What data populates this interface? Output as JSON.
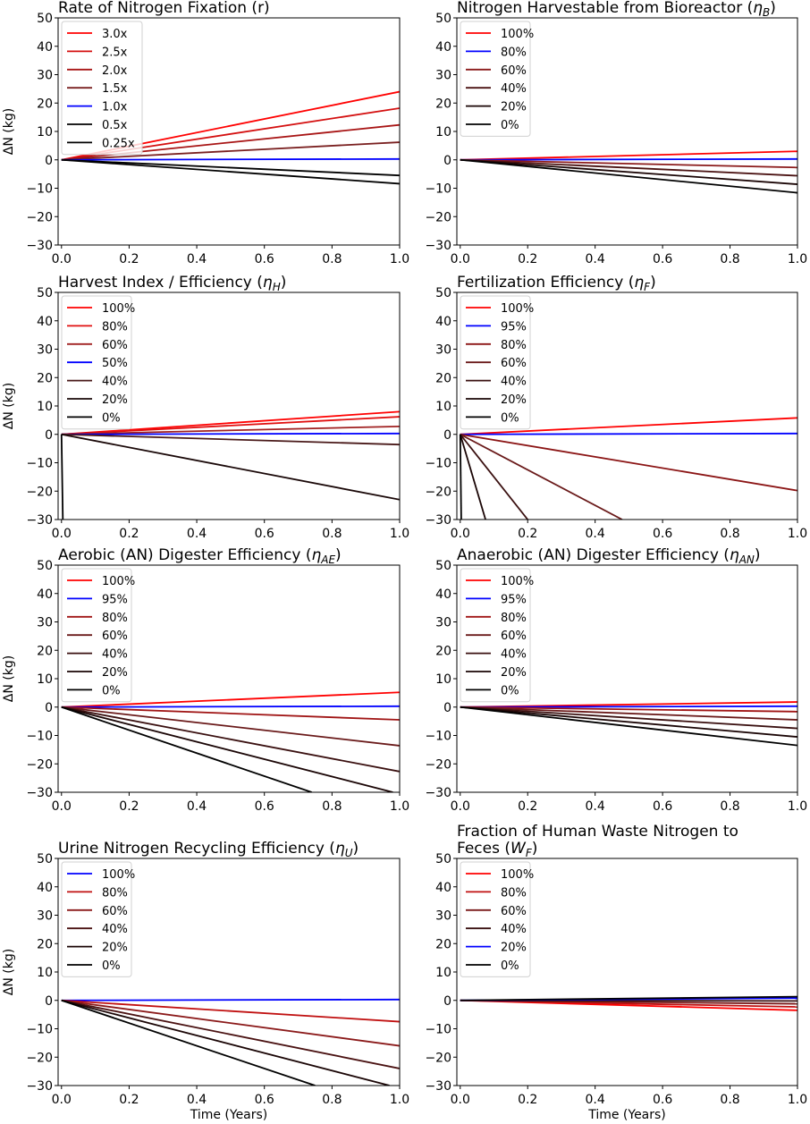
{
  "chart_data": [
    {
      "type": "line",
      "title": {
        "prefix": "Rate of Nitrogen Fixation (r)",
        "var": "",
        "sub": "",
        "suffix": ""
      },
      "ylabel": "ΔN (kg)",
      "xlabel": "",
      "xlim": [
        -0.01,
        1.0
      ],
      "ylim": [
        -30,
        50
      ],
      "xticks": [
        "0.0",
        "0.2",
        "0.4",
        "0.6",
        "0.8",
        "1.0"
      ],
      "yticks": [
        "50",
        "40",
        "30",
        "20",
        "10",
        "0",
        "−10",
        "−20",
        "−30"
      ],
      "legend": "top-left",
      "series": [
        {
          "name": "3.0x",
          "color": "#ff0000",
          "x": [
            0,
            1
          ],
          "y": [
            0,
            24
          ]
        },
        {
          "name": "2.5x",
          "color": "#d41010",
          "x": [
            0,
            1
          ],
          "y": [
            0,
            18.2
          ]
        },
        {
          "name": "2.0x",
          "color": "#a81515",
          "x": [
            0,
            1
          ],
          "y": [
            0,
            12.3
          ]
        },
        {
          "name": "1.5x",
          "color": "#7a2020",
          "x": [
            0,
            1
          ],
          "y": [
            0,
            6.2
          ]
        },
        {
          "name": "1.0x",
          "color": "#0000ff",
          "x": [
            0,
            1
          ],
          "y": [
            0,
            0.3
          ]
        },
        {
          "name": "0.5x",
          "color": "#000000",
          "x": [
            0,
            1
          ],
          "y": [
            0,
            -5.5
          ]
        },
        {
          "name": "0.25x",
          "color": "#000000",
          "x": [
            0,
            1
          ],
          "y": [
            0,
            -8.4
          ]
        }
      ]
    },
    {
      "type": "line",
      "title": {
        "prefix": "Nitrogen Harvestable from Bioreactor (",
        "var": "η",
        "sub": "B",
        "suffix": ")"
      },
      "ylabel": "",
      "xlabel": "",
      "xlim": [
        -0.01,
        1.0
      ],
      "ylim": [
        -30,
        50
      ],
      "xticks": [
        "0.0",
        "0.2",
        "0.4",
        "0.6",
        "0.8",
        "1.0"
      ],
      "yticks": [
        "50",
        "40",
        "30",
        "20",
        "10",
        "0",
        "−10",
        "−20",
        "−30"
      ],
      "legend": "top-left",
      "series": [
        {
          "name": "100%",
          "color": "#ff0000",
          "x": [
            0,
            1
          ],
          "y": [
            0,
            3.0
          ]
        },
        {
          "name": "80%",
          "color": "#0000ff",
          "x": [
            0,
            1
          ],
          "y": [
            0,
            0.3
          ]
        },
        {
          "name": "60%",
          "color": "#8b1a1a",
          "x": [
            0,
            1
          ],
          "y": [
            0,
            -2.7
          ]
        },
        {
          "name": "40%",
          "color": "#4a1212",
          "x": [
            0,
            1
          ],
          "y": [
            0,
            -5.6
          ]
        },
        {
          "name": "20%",
          "color": "#1a0505",
          "x": [
            0,
            1
          ],
          "y": [
            0,
            -8.6
          ]
        },
        {
          "name": "0%",
          "color": "#000000",
          "x": [
            0,
            1
          ],
          "y": [
            0,
            -11.6
          ]
        }
      ]
    },
    {
      "type": "line",
      "title": {
        "prefix": "Harvest Index / Efficiency (",
        "var": "η",
        "sub": "H",
        "suffix": ")"
      },
      "ylabel": "ΔN (kg)",
      "xlabel": "",
      "xlim": [
        -0.01,
        1.0
      ],
      "ylim": [
        -30,
        50
      ],
      "xticks": [
        "0.0",
        "0.2",
        "0.4",
        "0.6",
        "0.8",
        "1.0"
      ],
      "yticks": [
        "50",
        "40",
        "30",
        "20",
        "10",
        "0",
        "−10",
        "−20",
        "−30"
      ],
      "legend": "top-left",
      "series": [
        {
          "name": "100%",
          "color": "#ff0000",
          "x": [
            0,
            1
          ],
          "y": [
            0,
            8.0
          ]
        },
        {
          "name": "80%",
          "color": "#e01010",
          "x": [
            0,
            1
          ],
          "y": [
            0,
            6.2
          ]
        },
        {
          "name": "60%",
          "color": "#a02020",
          "x": [
            0,
            1
          ],
          "y": [
            0,
            2.8
          ]
        },
        {
          "name": "50%",
          "color": "#0000ff",
          "x": [
            0,
            1
          ],
          "y": [
            0,
            0.3
          ]
        },
        {
          "name": "40%",
          "color": "#4a1a1a",
          "x": [
            0,
            1
          ],
          "y": [
            0,
            -3.6
          ]
        },
        {
          "name": "20%",
          "color": "#1a0808",
          "x": [
            0,
            1
          ],
          "y": [
            0,
            -23
          ]
        },
        {
          "name": "0%",
          "color": "#000000",
          "x": [
            0,
            0.004
          ],
          "y": [
            0,
            -30
          ]
        }
      ]
    },
    {
      "type": "line",
      "title": {
        "prefix": "Fertilization Efficiency (",
        "var": "η",
        "sub": "F",
        "suffix": ")"
      },
      "ylabel": "",
      "xlabel": "",
      "xlim": [
        -0.01,
        1.0
      ],
      "ylim": [
        -30,
        50
      ],
      "xticks": [
        "0.0",
        "0.2",
        "0.4",
        "0.6",
        "0.8",
        "1.0"
      ],
      "yticks": [
        "50",
        "40",
        "30",
        "20",
        "10",
        "0",
        "−10",
        "−20",
        "−30"
      ],
      "legend": "top-left",
      "series": [
        {
          "name": "100%",
          "color": "#ff0000",
          "x": [
            0,
            1
          ],
          "y": [
            0,
            5.8
          ]
        },
        {
          "name": "95%",
          "color": "#0000ff",
          "x": [
            0,
            1
          ],
          "y": [
            0,
            0.3
          ]
        },
        {
          "name": "80%",
          "color": "#8b1515",
          "x": [
            0,
            1
          ],
          "y": [
            0,
            -19.8
          ]
        },
        {
          "name": "60%",
          "color": "#6a1a1a",
          "x": [
            0,
            0.48
          ],
          "y": [
            0,
            -30
          ]
        },
        {
          "name": "40%",
          "color": "#3a1010",
          "x": [
            0,
            0.2
          ],
          "y": [
            0,
            -30
          ]
        },
        {
          "name": "20%",
          "color": "#1a0505",
          "x": [
            0,
            0.075
          ],
          "y": [
            0,
            -30
          ]
        },
        {
          "name": "0%",
          "color": "#000000",
          "x": [
            0,
            0.003
          ],
          "y": [
            0,
            -30
          ]
        }
      ]
    },
    {
      "type": "line",
      "title": {
        "prefix": "Aerobic (AN) Digester Efficiency (",
        "var": "η",
        "sub": "AE",
        "suffix": ")"
      },
      "ylabel": "ΔN (kg)",
      "xlabel": "",
      "xlim": [
        -0.01,
        1.0
      ],
      "ylim": [
        -30,
        50
      ],
      "xticks": [
        "0.0",
        "0.2",
        "0.4",
        "0.6",
        "0.8",
        "1.0"
      ],
      "yticks": [
        "50",
        "40",
        "30",
        "20",
        "10",
        "0",
        "−10",
        "−20",
        "−30"
      ],
      "legend": "top-left",
      "series": [
        {
          "name": "100%",
          "color": "#ff0000",
          "x": [
            0,
            1
          ],
          "y": [
            0,
            5.2
          ]
        },
        {
          "name": "95%",
          "color": "#0000ff",
          "x": [
            0,
            1
          ],
          "y": [
            0,
            0.3
          ]
        },
        {
          "name": "80%",
          "color": "#a01515",
          "x": [
            0,
            1
          ],
          "y": [
            0,
            -4.5
          ]
        },
        {
          "name": "60%",
          "color": "#6a1a1a",
          "x": [
            0,
            1
          ],
          "y": [
            0,
            -13.6
          ]
        },
        {
          "name": "40%",
          "color": "#3a1010",
          "x": [
            0,
            1
          ],
          "y": [
            0,
            -22.7
          ]
        },
        {
          "name": "20%",
          "color": "#1a0505",
          "x": [
            0,
            0.98
          ],
          "y": [
            0,
            -30
          ]
        },
        {
          "name": "0%",
          "color": "#000000",
          "x": [
            0,
            0.74
          ],
          "y": [
            0,
            -30
          ]
        }
      ]
    },
    {
      "type": "line",
      "title": {
        "prefix": "Anaerobic (AN) Digester Efficiency (",
        "var": "η",
        "sub": "AN",
        "suffix": ")"
      },
      "ylabel": "",
      "xlabel": "",
      "xlim": [
        -0.01,
        1.0
      ],
      "ylim": [
        -30,
        50
      ],
      "xticks": [
        "0.0",
        "0.2",
        "0.4",
        "0.6",
        "0.8",
        "1.0"
      ],
      "yticks": [
        "50",
        "40",
        "30",
        "20",
        "10",
        "0",
        "−10",
        "−20",
        "−30"
      ],
      "legend": "top-left",
      "series": [
        {
          "name": "100%",
          "color": "#ff0000",
          "x": [
            0,
            1
          ],
          "y": [
            0,
            1.8
          ]
        },
        {
          "name": "95%",
          "color": "#0000ff",
          "x": [
            0,
            1
          ],
          "y": [
            0,
            0.3
          ]
        },
        {
          "name": "80%",
          "color": "#a01515",
          "x": [
            0,
            1
          ],
          "y": [
            0,
            -1.6
          ]
        },
        {
          "name": "60%",
          "color": "#6a1a1a",
          "x": [
            0,
            1
          ],
          "y": [
            0,
            -4.5
          ]
        },
        {
          "name": "40%",
          "color": "#3a1010",
          "x": [
            0,
            1
          ],
          "y": [
            0,
            -7.5
          ]
        },
        {
          "name": "20%",
          "color": "#1a0505",
          "x": [
            0,
            1
          ],
          "y": [
            0,
            -10.5
          ]
        },
        {
          "name": "0%",
          "color": "#000000",
          "x": [
            0,
            1
          ],
          "y": [
            0,
            -13.5
          ]
        }
      ]
    },
    {
      "type": "line",
      "title": {
        "prefix": "Urine Nitrogen Recycling Efficiency (",
        "var": "η",
        "sub": "U",
        "suffix": ")"
      },
      "ylabel": "ΔN (kg)",
      "xlabel": "Time (Years)",
      "xlim": [
        -0.01,
        1.0
      ],
      "ylim": [
        -30,
        50
      ],
      "xticks": [
        "0.0",
        "0.2",
        "0.4",
        "0.6",
        "0.8",
        "1.0"
      ],
      "yticks": [
        "50",
        "40",
        "30",
        "20",
        "10",
        "0",
        "−10",
        "−20",
        "−30"
      ],
      "legend": "top-left",
      "series": [
        {
          "name": "100%",
          "color": "#0000ff",
          "x": [
            0,
            1
          ],
          "y": [
            0,
            0.3
          ]
        },
        {
          "name": "80%",
          "color": "#c01010",
          "x": [
            0,
            1
          ],
          "y": [
            0,
            -7.5
          ]
        },
        {
          "name": "60%",
          "color": "#8b1a1a",
          "x": [
            0,
            1
          ],
          "y": [
            0,
            -16
          ]
        },
        {
          "name": "40%",
          "color": "#4a1212",
          "x": [
            0,
            1
          ],
          "y": [
            0,
            -24
          ]
        },
        {
          "name": "20%",
          "color": "#1a0505",
          "x": [
            0,
            0.97
          ],
          "y": [
            0,
            -30
          ]
        },
        {
          "name": "0%",
          "color": "#000000",
          "x": [
            0,
            0.75
          ],
          "y": [
            0,
            -30
          ]
        }
      ]
    },
    {
      "type": "line",
      "title": {
        "prefix": "Fraction of Human Waste Nitrogen to",
        "line2": "Feces (",
        "var": "W",
        "sub": "F",
        "suffix": ")"
      },
      "ylabel": "",
      "xlabel": "Time (Years)",
      "xlim": [
        -0.01,
        1.0
      ],
      "ylim": [
        -30,
        50
      ],
      "xticks": [
        "0.0",
        "0.2",
        "0.4",
        "0.6",
        "0.8",
        "1.0"
      ],
      "yticks": [
        "50",
        "40",
        "30",
        "20",
        "10",
        "0",
        "−10",
        "−20",
        "−30"
      ],
      "legend": "top-left",
      "series": [
        {
          "name": "100%",
          "color": "#ff0000",
          "x": [
            0,
            1
          ],
          "y": [
            0,
            -3.5
          ]
        },
        {
          "name": "80%",
          "color": "#c01010",
          "x": [
            0,
            1
          ],
          "y": [
            0,
            -2.3
          ]
        },
        {
          "name": "60%",
          "color": "#7a1a1a",
          "x": [
            0,
            1
          ],
          "y": [
            0,
            -1.2
          ]
        },
        {
          "name": "40%",
          "color": "#3a1010",
          "x": [
            0,
            1
          ],
          "y": [
            0,
            -0.2
          ]
        },
        {
          "name": "20%",
          "color": "#0000ff",
          "x": [
            0,
            1
          ],
          "y": [
            0,
            0.8
          ]
        },
        {
          "name": "0%",
          "color": "#000000",
          "x": [
            0,
            1
          ],
          "y": [
            0,
            1.3
          ]
        }
      ]
    }
  ]
}
